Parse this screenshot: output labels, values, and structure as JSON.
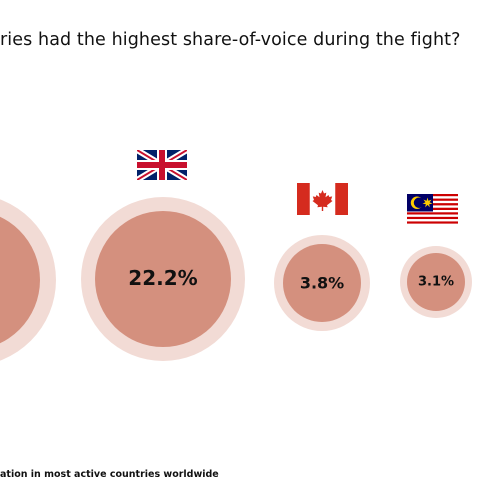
{
  "colors": {
    "bubble_inner": "#d4907e",
    "bubble_halo": "#f2dbd5",
    "text": "#111111"
  },
  "chart_data": {
    "type": "bubble",
    "title": "ries had the highest share-of-voice during the fight?",
    "footnote": "ation in most active countries worldwide",
    "unit": "%",
    "series": [
      {
        "country": "",
        "flag": "",
        "value": null,
        "label": ""
      },
      {
        "country": "United Kingdom",
        "flag": "uk-flag-icon",
        "value": 22.2,
        "label": "22.2%"
      },
      {
        "country": "Canada",
        "flag": "canada-flag-icon",
        "value": 3.8,
        "label": "3.8%"
      },
      {
        "country": "Malaysia",
        "flag": "malaysia-flag-icon",
        "value": 3.1,
        "label": "3.1%"
      }
    ]
  }
}
